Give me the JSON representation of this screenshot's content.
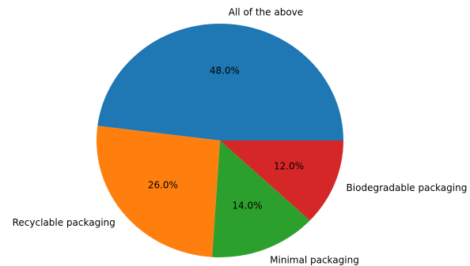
{
  "chart_data": {
    "type": "pie",
    "labels": [
      "All of the above",
      "Recyclable packaging",
      "Minimal packaging",
      "Biodegradable packaging"
    ],
    "values": [
      48.0,
      26.0,
      14.0,
      12.0
    ],
    "pct_labels": [
      "48.0%",
      "26.0%",
      "14.0%",
      "12.0%"
    ],
    "colors": [
      "#1f77b4",
      "#ff7f0e",
      "#2ca02c",
      "#d62728"
    ],
    "start_angle_deg": 0,
    "direction": "counterclockwise"
  }
}
